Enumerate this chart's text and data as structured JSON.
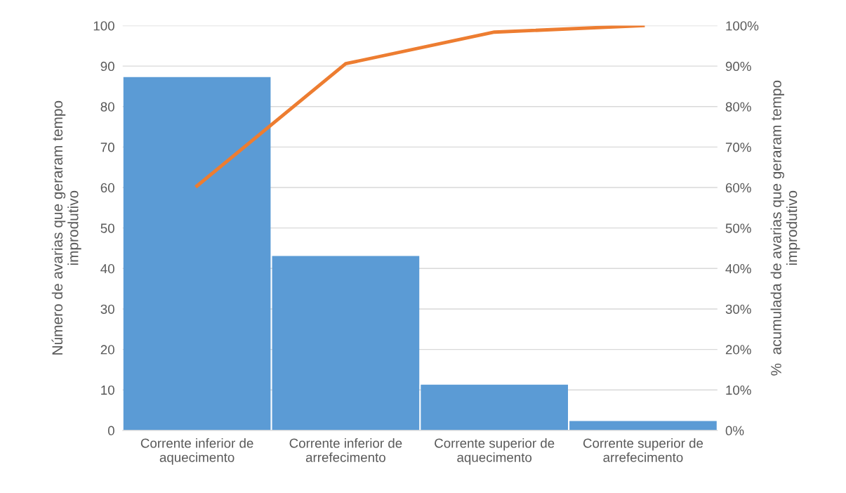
{
  "chart_data": {
    "type": "bar",
    "categories": [
      "Corrente inferior de\naquecimento",
      "Corrente inferior de\narrefecimento",
      "Corrente superior de\naquecimento",
      "Corrente superior de\narrefecimento"
    ],
    "series": [
      {
        "color": "#5b9bd5",
        "values": [
          87.3,
          43.1,
          11.3,
          2.3
        ]
      },
      {
        "type": "line",
        "axis": "y2",
        "color": "#ed7d31",
        "values": [
          60.4,
          90.6,
          98.4,
          100
        ],
        "marker": "none",
        "line_style": "solid"
      }
    ],
    "ylabel": "Número de avarias que geraram tempo\nimprodutivo",
    "y2label": "%  acumulada de avarias que geraram tempo\nimprodutivo",
    "ylim": [
      0,
      100
    ],
    "yticks": [
      0,
      10,
      20,
      30,
      40,
      50,
      60,
      70,
      80,
      90,
      100
    ],
    "y2lim": [
      0,
      100
    ],
    "y2ticks": [
      {
        "value": 0,
        "label": "0%"
      },
      {
        "value": 10,
        "label": "10%"
      },
      {
        "value": 20,
        "label": "20%"
      },
      {
        "value": 30,
        "label": "30%"
      },
      {
        "value": 40,
        "label": "40%"
      },
      {
        "value": 50,
        "label": "50%"
      },
      {
        "value": 60,
        "label": "60%"
      },
      {
        "value": 70,
        "label": "70%"
      },
      {
        "value": 80,
        "label": "80%"
      },
      {
        "value": 90,
        "label": "90%"
      },
      {
        "value": 100,
        "label": "100%"
      }
    ],
    "grid": "y",
    "legend": false
  }
}
